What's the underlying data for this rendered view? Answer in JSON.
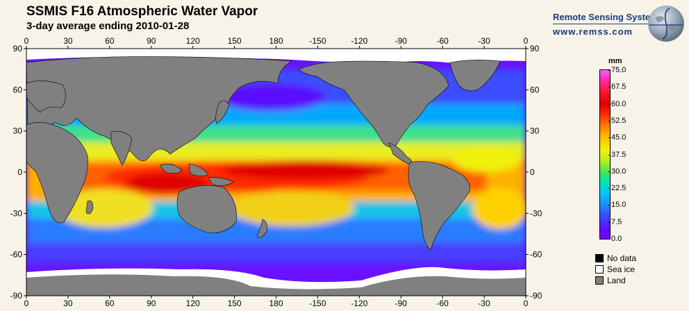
{
  "header": {
    "title": "SSMIS F16 Atmospheric Water Vapor",
    "subtitle": "3-day average ending 2010-01-28"
  },
  "brand": {
    "name": "Remote Sensing Systems",
    "url": "www.remss.com",
    "logo_icon": "globe-icon"
  },
  "map": {
    "lon_ticks": [
      "0",
      "30",
      "60",
      "90",
      "120",
      "150",
      "180",
      "-150",
      "-120",
      "-90",
      "-60",
      "-30",
      "0"
    ],
    "lat_ticks": [
      "90",
      "60",
      "30",
      "0",
      "-30",
      "-60",
      "-90"
    ],
    "land_color": "#808080",
    "ice_color": "#ffffff",
    "ocean_colors": [
      "#7a00ff",
      "#3a4dff",
      "#00c6ff",
      "#4ee64e",
      "#f0f010",
      "#ff7a00",
      "#e00000"
    ]
  },
  "colorbar": {
    "unit": "mm",
    "labels": [
      "75.0",
      "67.5",
      "60.0",
      "52.5",
      "45.0",
      "37.5",
      "30.0",
      "22.5",
      "15.0",
      "7.5",
      "0.0"
    ]
  },
  "legend": [
    {
      "label": "No data",
      "color": "#000000"
    },
    {
      "label": "Sea ice",
      "color": "#ffffff"
    },
    {
      "label": "Land",
      "color": "#808080"
    }
  ]
}
